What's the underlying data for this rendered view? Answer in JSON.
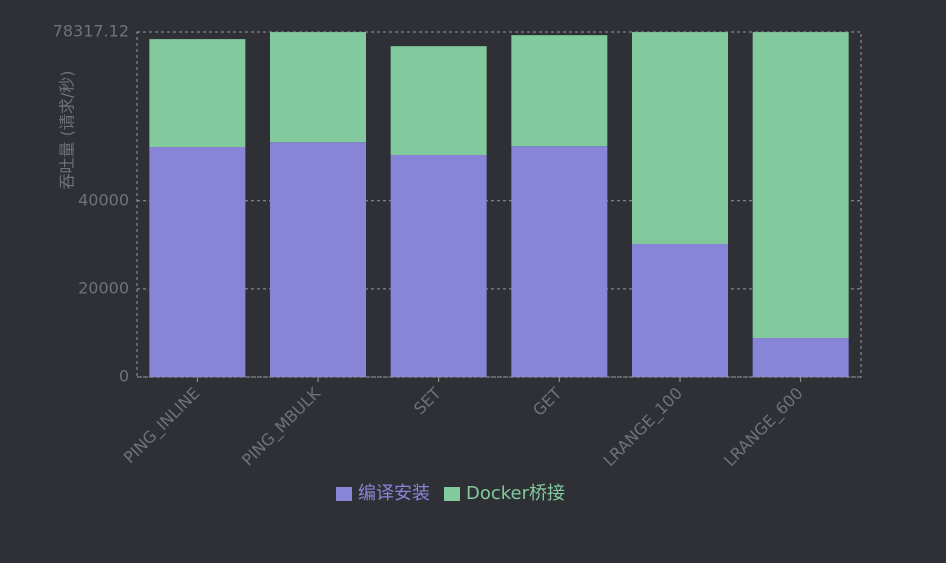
{
  "chart_data": {
    "type": "stacked_bar",
    "y_label": "吞吐量 (请求/秒)",
    "categories": [
      "PING_INLINE",
      "PING_MBULK",
      "SET",
      "GET",
      "LRANGE_100",
      "LRANGE_600"
    ],
    "series": [
      {
        "name": "编译安装",
        "color": "#8884d8",
        "values": [
          52200,
          53300,
          50400,
          52400,
          30200,
          8850
        ]
      },
      {
        "name": "Docker桥接",
        "color": "#82ca9d",
        "values": [
          24500,
          25000,
          24700,
          25200,
          48100,
          69450
        ]
      }
    ],
    "ylim": [
      0,
      78317.12
    ],
    "yticks": [
      0,
      20000,
      40000,
      78317.12
    ],
    "grid": true
  }
}
